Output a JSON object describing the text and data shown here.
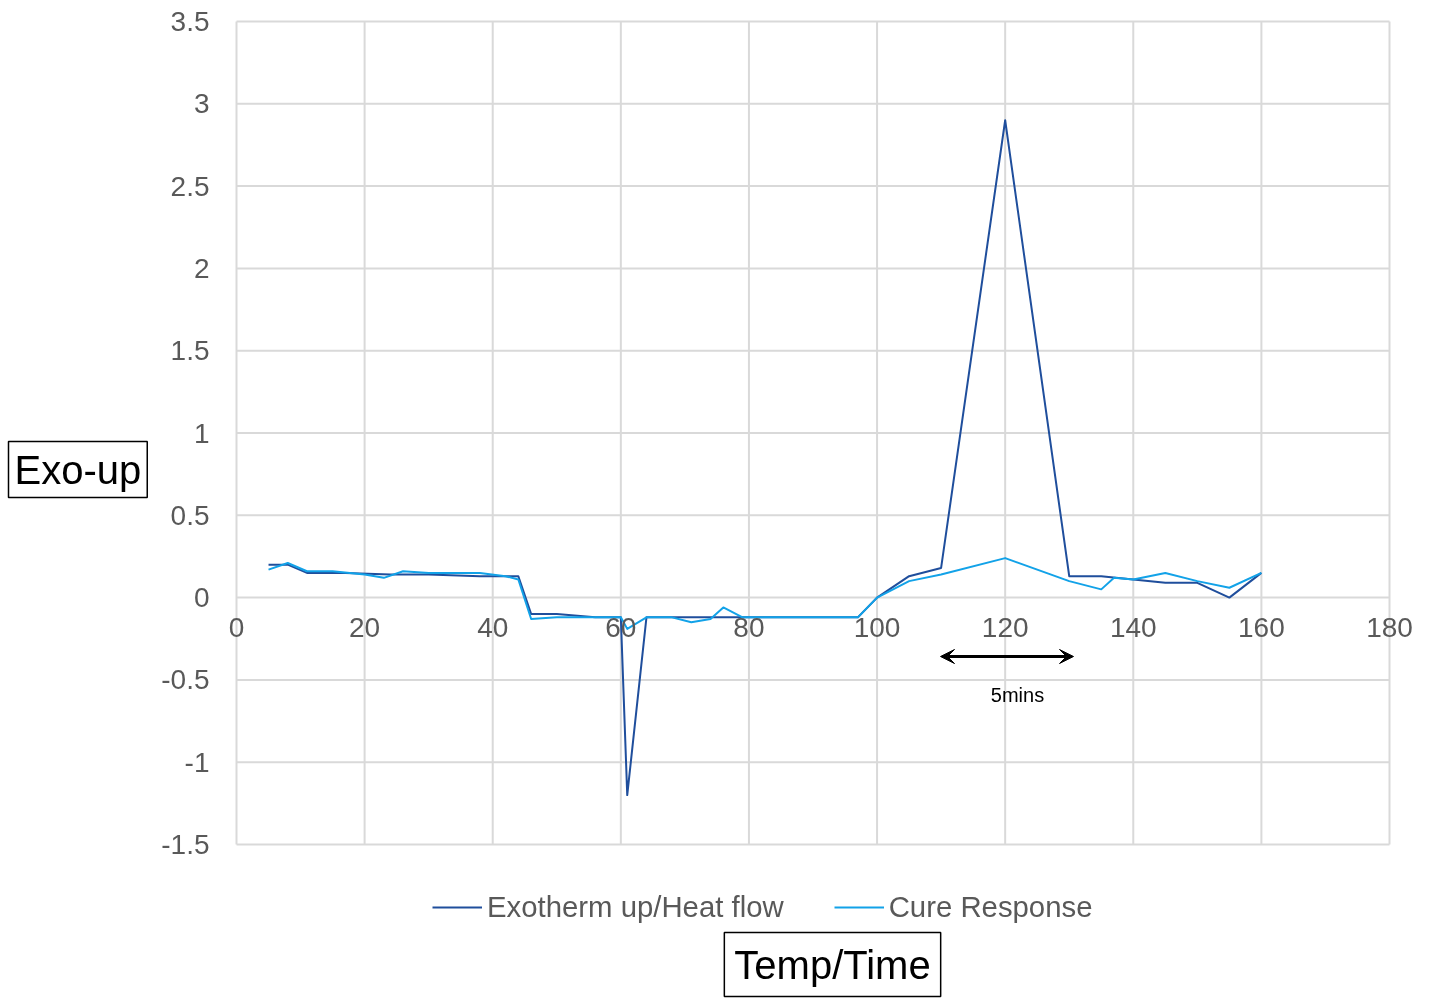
{
  "chart_data": {
    "type": "line",
    "xlabel": "Temp/Time",
    "ylabel": "Exo-up",
    "xlim": [
      0,
      180
    ],
    "xticks": [
      0,
      20,
      40,
      60,
      80,
      100,
      120,
      140,
      160,
      180
    ],
    "ylim": [
      -1.5,
      3.5
    ],
    "yticks": [
      -1.5,
      -1,
      -0.5,
      0,
      0.5,
      1,
      1.5,
      2,
      2.5,
      3,
      3.5
    ],
    "grid": true,
    "legend": "bottom",
    "marker": "none",
    "line_style": "solid",
    "annotations": [
      "5mins"
    ],
    "series": [
      {
        "name": "Exotherm up/Heat flow",
        "color": "#1f4e9c",
        "x": [
          5,
          8,
          11,
          17,
          24,
          30,
          38,
          44,
          46,
          50,
          56,
          60,
          61,
          64,
          72,
          80,
          97,
          100,
          105,
          110,
          120,
          130,
          135,
          140,
          145,
          150,
          155,
          160
        ],
        "values": [
          0.2,
          0.2,
          0.15,
          0.15,
          0.14,
          0.14,
          0.13,
          0.13,
          -0.1,
          -0.1,
          -0.12,
          -0.12,
          -1.2,
          -0.12,
          -0.12,
          -0.12,
          -0.12,
          0,
          0.13,
          0.18,
          2.9,
          0.13,
          0.13,
          0.11,
          0.09,
          0.09,
          0,
          0.15
        ]
      },
      {
        "name": "Cure Response",
        "color": "#12a2e8",
        "x": [
          5,
          8,
          11,
          15,
          20,
          23,
          26,
          30,
          38,
          42,
          44,
          46,
          50,
          60,
          61,
          64,
          68,
          71,
          74,
          76,
          79,
          97,
          100,
          105,
          110,
          120,
          130,
          135,
          137,
          140,
          145,
          150,
          155,
          160
        ],
        "values": [
          0.17,
          0.21,
          0.16,
          0.16,
          0.14,
          0.12,
          0.16,
          0.15,
          0.15,
          0.13,
          0.11,
          -0.13,
          -0.12,
          -0.12,
          -0.19,
          -0.12,
          -0.12,
          -0.15,
          -0.13,
          -0.06,
          -0.12,
          -0.12,
          0,
          0.1,
          0.14,
          0.24,
          0.1,
          0.05,
          0.12,
          0.11,
          0.15,
          0.1,
          0.06,
          0.15
        ]
      }
    ]
  }
}
